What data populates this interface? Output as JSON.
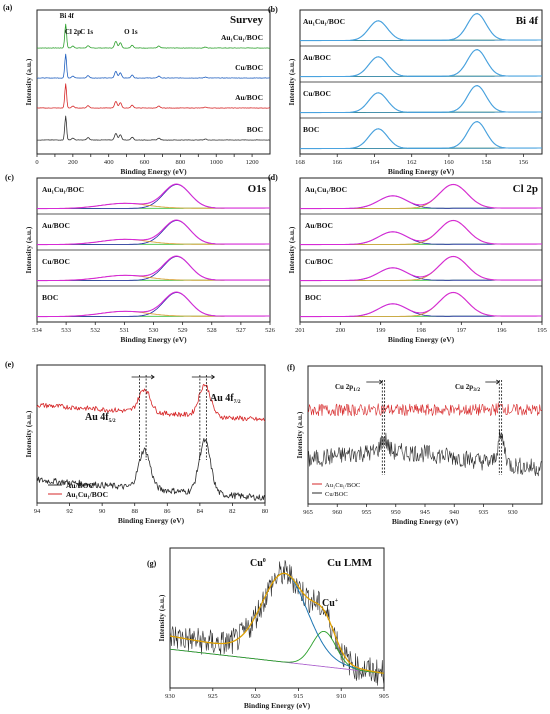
{
  "colors": {
    "boc": "#333333",
    "au": "#d62728",
    "cu": "#1f5fbf",
    "aucu": "#2ca02c",
    "raw": "#2a2a2a",
    "envelope": "#f0a000",
    "fitA": "#1f77b4",
    "fitB": "#1f77b4",
    "bg_cl": "#9a9a9a",
    "bi_fit": "#4aa3df",
    "bi_bg": "#8ccf3a",
    "o_fit": "#d62bd6",
    "o_c1": "#2323aa",
    "o_c2": "#d89b2a",
    "o_bg": "#3fbf3f",
    "cl_fit": "#d62bd6",
    "cl_c1": "#2323aa",
    "cl_c2": "#d89b2a",
    "cl_bg": "#3fbf3f",
    "cu_lmm_fit": "#e0a000",
    "cu_lmm_c1": "#1f77b4",
    "cu_lmm_c2": "#2ca02c",
    "cu_lmm_bg": "#b06ad0"
  },
  "chart_data": [
    {
      "id": "a",
      "letter": "(a)",
      "type": "line",
      "title": "Survey",
      "xlabel": "Binding Energy (eV)",
      "ylabel": "Intensity (a.u.)",
      "xlim": [
        0,
        1300
      ],
      "xticks": [
        0,
        100,
        200,
        300,
        400,
        500,
        600,
        700,
        800,
        900,
        1000,
        1100,
        1200
      ],
      "xticklabels": [
        "0",
        "",
        "200",
        "",
        "400",
        "",
        "600",
        "",
        "800",
        "",
        "1000",
        "",
        "1200"
      ],
      "annotations": [
        {
          "text": "Bi 4f",
          "x": 160
        },
        {
          "text": "Cl 2p",
          "x": 200
        },
        {
          "text": "C 1s",
          "x": 285
        },
        {
          "text": "O 1s",
          "x": 531
        }
      ],
      "series": [
        {
          "name": "Au1Cu1/BOC",
          "color_key": "aucu"
        },
        {
          "name": "Cu/BOC",
          "color_key": "cu"
        },
        {
          "name": "Au/BOC",
          "color_key": "au"
        },
        {
          "name": "BOC",
          "color_key": "boc"
        }
      ],
      "peaks": [
        {
          "x": 160,
          "h": 1.0
        },
        {
          "x": 200,
          "h": 0.08
        },
        {
          "x": 285,
          "h": 0.1
        },
        {
          "x": 440,
          "h": 0.28
        },
        {
          "x": 465,
          "h": 0.22
        },
        {
          "x": 531,
          "h": 0.12
        },
        {
          "x": 680,
          "h": 0.08
        },
        {
          "x": 940,
          "h": 0.04
        }
      ]
    },
    {
      "id": "b",
      "letter": "(b)",
      "type": "line",
      "title": "Bi 4f",
      "xlabel": "Binding Energy (eV)",
      "ylabel": "Intensity (a.u.)",
      "xlim": [
        168,
        155
      ],
      "xticks": [
        168,
        166,
        164,
        162,
        160,
        158,
        156
      ],
      "xticklabels": [
        "168",
        "166",
        "164",
        "162",
        "160",
        "158",
        "156"
      ],
      "series": [
        {
          "name": "Au1Cu1/BOC"
        },
        {
          "name": "Au/BOC"
        },
        {
          "name": "Cu/BOC"
        },
        {
          "name": "BOC"
        }
      ],
      "peaks": [
        {
          "x": 163.8,
          "h": 0.7,
          "w": 0.5
        },
        {
          "x": 158.5,
          "h": 0.95,
          "w": 0.5
        }
      ]
    },
    {
      "id": "c",
      "letter": "(c)",
      "type": "line",
      "title": "O1s",
      "xlabel": "Binding Energy (eV)",
      "ylabel": "Intensity (a.u.)",
      "xlim": [
        534,
        526
      ],
      "xticks": [
        534,
        533,
        532,
        531,
        530,
        529,
        528,
        527,
        526
      ],
      "xticklabels": [
        "534",
        "533",
        "532",
        "531",
        "530",
        "529",
        "528",
        "527",
        "526"
      ],
      "series": [
        {
          "name": "Au1Cu1/BOC"
        },
        {
          "name": "Au/BOC"
        },
        {
          "name": "Cu/BOC"
        },
        {
          "name": "BOC"
        }
      ],
      "peaks": [
        {
          "x": 529.2,
          "h": 0.85,
          "w": 0.45
        },
        {
          "x": 531.0,
          "h": 0.18,
          "w": 0.8
        }
      ]
    },
    {
      "id": "d",
      "letter": "(d)",
      "type": "line",
      "title": "Cl 2p",
      "xlabel": "Binding Energy (eV)",
      "ylabel": "Intensity (a.u.)",
      "xlim": [
        201,
        195
      ],
      "xticks": [
        201,
        200,
        199,
        198,
        197,
        196,
        195
      ],
      "xticklabels": [
        "201",
        "200",
        "199",
        "198",
        "197",
        "196",
        "195"
      ],
      "series": [
        {
          "name": "Au1Cu1/BOC"
        },
        {
          "name": "Au/BOC"
        },
        {
          "name": "Cu/BOC"
        },
        {
          "name": "BOC"
        }
      ],
      "peaks": [
        {
          "x": 198.7,
          "h": 0.45,
          "w": 0.35
        },
        {
          "x": 197.2,
          "h": 0.85,
          "w": 0.35
        }
      ]
    },
    {
      "id": "e",
      "letter": "(e)",
      "type": "line",
      "title": "",
      "xlabel": "Binding Energy (eV)",
      "ylabel": "Intensity (a.u.)",
      "xlim": [
        94,
        80
      ],
      "xticks": [
        94,
        92,
        90,
        88,
        86,
        84,
        82,
        80
      ],
      "xticklabels": [
        "94",
        "92",
        "90",
        "88",
        "86",
        "84",
        "82",
        "80"
      ],
      "annotations": [
        {
          "text": "Au 4f",
          "sub": "5/2",
          "x": 87.6
        },
        {
          "text": "Au 4f",
          "sub": "7/2",
          "x": 83.9
        }
      ],
      "markers": [
        87.7,
        87.3,
        84.0,
        83.6
      ],
      "series": [
        {
          "name": "Au/BOC",
          "color_key": "raw"
        },
        {
          "name": "Au1Cu1/BOC",
          "display": "Au₁Cu₁/BOC",
          "color_key": "au"
        }
      ],
      "peaks": [
        {
          "x": 87.4,
          "h": 0.55,
          "w": 0.35
        },
        {
          "x": 83.7,
          "h": 0.75,
          "w": 0.35
        }
      ]
    },
    {
      "id": "f",
      "letter": "(f)",
      "type": "line",
      "title": "",
      "xlabel": "Binding Energy (eV)",
      "ylabel": "Intensity (a.u.)",
      "xlim": [
        965,
        925
      ],
      "xticks": [
        965,
        960,
        955,
        950,
        945,
        940,
        935,
        930
      ],
      "xticklabels": [
        "965",
        "960",
        "955",
        "950",
        "945",
        "940",
        "935",
        "930"
      ],
      "annotations": [
        {
          "text": "Cu 2p",
          "sub": "1/2",
          "x": 952
        },
        {
          "text": "Cu 2p",
          "sub": "3/2",
          "x": 932
        }
      ],
      "markers": [
        952.3,
        951.9,
        932.3,
        931.9
      ],
      "series": [
        {
          "name": "Au1Cu1/BOC",
          "display": "Au₁Cu₁/BOC",
          "color_key": "au"
        },
        {
          "name": "Cu/BOC",
          "color_key": "raw"
        }
      ],
      "peaks": [
        {
          "x": 952.0,
          "h": 0.35,
          "w": 0.6
        },
        {
          "x": 932.0,
          "h": 0.7,
          "w": 0.6
        }
      ]
    },
    {
      "id": "g",
      "letter": "(g)",
      "type": "line",
      "title": "Cu LMM",
      "xlabel": "Binding Energy (eV)",
      "ylabel": "Intensity (a.u.)",
      "xlim": [
        930,
        905
      ],
      "xticks": [
        930,
        925,
        920,
        915,
        910,
        905
      ],
      "xticklabels": [
        "930",
        "925",
        "920",
        "915",
        "910",
        "905"
      ],
      "annotations": [
        {
          "text": "Cu",
          "sup": "0",
          "x": 918
        },
        {
          "text": "Cu",
          "sup": "+",
          "x": 912
        }
      ],
      "peaks": [
        {
          "x": 916.6,
          "h": 0.75,
          "w": 2.6
        },
        {
          "x": 912.0,
          "h": 0.32,
          "w": 1.4
        }
      ]
    }
  ]
}
